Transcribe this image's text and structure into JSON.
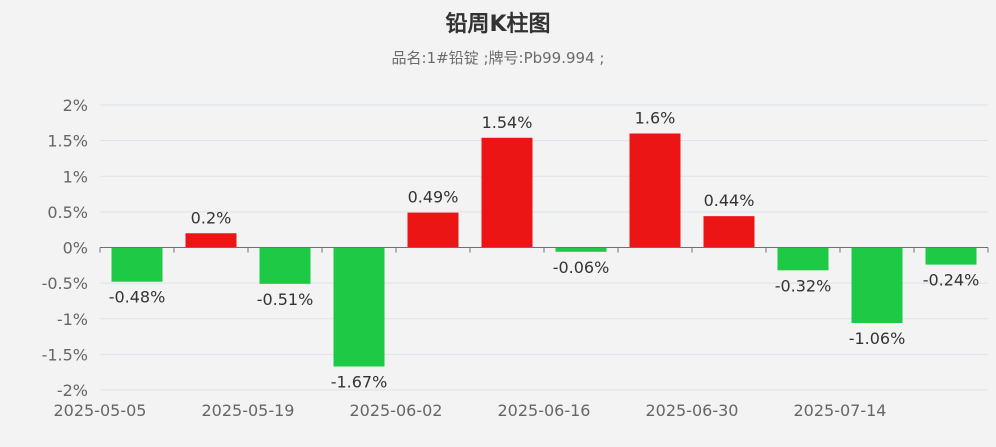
{
  "chart_data": {
    "type": "bar",
    "title": "铅周K柱图",
    "subtitle": "品名:1#铅锭 ;牌号:Pb99.994 ;",
    "ylim": [
      -2,
      2
    ],
    "y_ticks": [
      2,
      1.5,
      1,
      0.5,
      0,
      -0.5,
      -1,
      -1.5,
      -2
    ],
    "y_tick_labels": [
      "2%",
      "1.5%",
      "1%",
      "0.5%",
      "0%",
      "-0.5%",
      "-1%",
      "-1.5%",
      "-2%"
    ],
    "x_axis_labels": [
      "2025-05-05",
      "2025-05-19",
      "2025-06-02",
      "2025-06-16",
      "2025-06-30",
      "2025-07-14"
    ],
    "values": [
      -0.48,
      0.2,
      -0.51,
      -1.67,
      0.49,
      1.54,
      -0.06,
      1.6,
      0.44,
      -0.32,
      -1.06,
      -0.24
    ],
    "data_labels": [
      "-0.48%",
      "0.2%",
      "-0.51%",
      "-1.67%",
      "0.49%",
      "1.54%",
      "-0.06%",
      "1.6%",
      "0.44%",
      "-0.32%",
      "-1.06%",
      "-0.24%"
    ],
    "colors": {
      "up": "#ec1515",
      "down": "#1ec945"
    },
    "grid": true
  }
}
